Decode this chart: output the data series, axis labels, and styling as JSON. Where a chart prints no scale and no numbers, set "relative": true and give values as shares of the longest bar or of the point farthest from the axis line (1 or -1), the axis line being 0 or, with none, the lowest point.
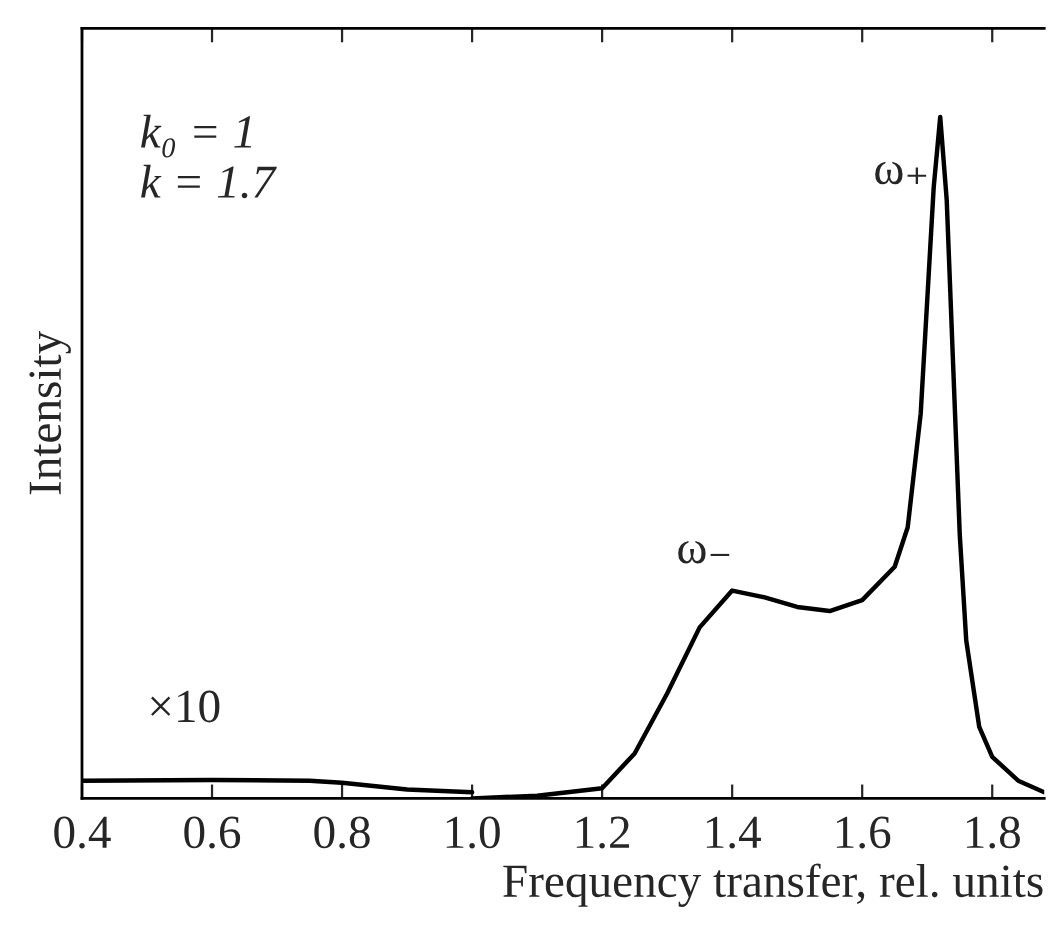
{
  "chart_data": {
    "type": "line",
    "relative": true,
    "xlabel": "Frequency transfer, rel. units",
    "ylabel": "Intensity",
    "xlim": [
      0.4,
      1.88
    ],
    "xticks": [
      {
        "value": 0.4,
        "label": "0.4"
      },
      {
        "value": 0.6,
        "label": "0.6"
      },
      {
        "value": 0.8,
        "label": "0.8"
      },
      {
        "value": 1.0,
        "label": "1.0"
      },
      {
        "value": 1.2,
        "label": "1.2"
      },
      {
        "value": 1.4,
        "label": "1.4"
      },
      {
        "value": 1.6,
        "label": "1.6"
      },
      {
        "value": 1.8,
        "label": "1.8"
      }
    ],
    "tick_labels": "x",
    "grid": false,
    "legend": false,
    "marker": "none",
    "line_style": "solid",
    "series": [
      {
        "color": "#000000",
        "x": [
          0.4,
          0.6,
          0.75,
          0.8,
          0.9,
          1.0
        ],
        "values": [
          0.026,
          0.027,
          0.026,
          0.023,
          0.013,
          0.009
        ]
      },
      {
        "color": "#000000",
        "x": [
          1.0,
          1.1,
          1.2,
          1.25,
          1.3,
          1.35,
          1.4,
          1.45,
          1.5,
          1.55,
          1.6,
          1.65,
          1.67,
          1.69,
          1.7,
          1.71,
          1.72,
          1.73,
          1.74,
          1.75,
          1.76,
          1.78,
          1.8,
          1.84,
          1.88
        ],
        "values": [
          0.0,
          0.004,
          0.015,
          0.066,
          0.154,
          0.251,
          0.305,
          0.295,
          0.281,
          0.275,
          0.291,
          0.34,
          0.398,
          0.565,
          0.731,
          0.897,
          1.0,
          0.878,
          0.633,
          0.388,
          0.232,
          0.105,
          0.061,
          0.026,
          0.009
        ]
      }
    ],
    "annotations": [
      {
        "text": "k₀ = 1"
      },
      {
        "text": "k = 1.7"
      },
      {
        "text": "×10",
        "x": 0.6,
        "y": 0.027
      },
      {
        "text": "ω₋",
        "x": 1.4,
        "y": 0.305
      },
      {
        "text": "ω₊",
        "x": 1.72,
        "y": 1.0
      }
    ]
  }
}
